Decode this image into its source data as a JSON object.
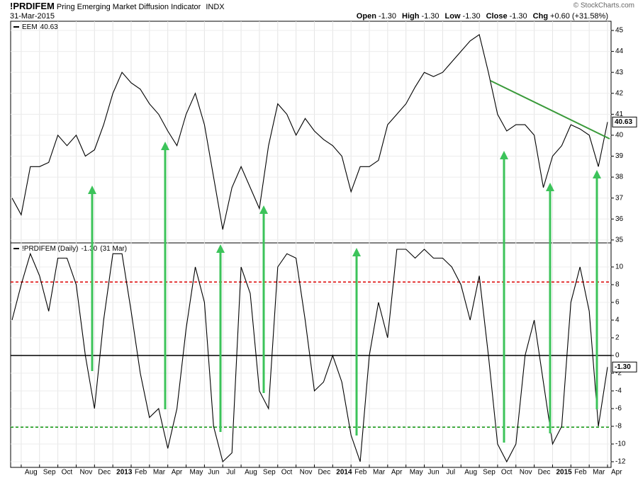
{
  "header": {
    "title": "!PRDIFEM",
    "subtitle": "Pring Emerging Market Diffusion Indicator",
    "exchange": "INDX",
    "date": "31-Mar-2015",
    "quote": [
      {
        "label": "Open",
        "value": "-1.30"
      },
      {
        "label": "High",
        "value": "-1.30"
      },
      {
        "label": "Low",
        "value": "-1.30"
      },
      {
        "label": "Close",
        "value": "-1.30"
      },
      {
        "label": "Chg",
        "value": "+0.60 (+31.58%)"
      }
    ],
    "copyright": "© StockCharts.com"
  },
  "chart_data": [
    {
      "type": "line",
      "ylim": [
        34.86,
        45.44
      ],
      "yticks": [
        35,
        36,
        37,
        38,
        39,
        40,
        41,
        42,
        43,
        44,
        45
      ],
      "grid": true,
      "series": [
        {
          "name": "EEM",
          "color": "#000000",
          "values": [
            37.0,
            36.2,
            38.5,
            38.5,
            38.7,
            40.0,
            39.5,
            40.0,
            39.0,
            39.3,
            40.5,
            42.0,
            43.0,
            42.5,
            42.2,
            41.5,
            41.0,
            40.2,
            39.5,
            41.0,
            42.0,
            40.5,
            38.0,
            35.5,
            37.5,
            38.5,
            37.5,
            36.5,
            39.5,
            41.5,
            41.0,
            40.0,
            40.8,
            40.2,
            39.8,
            39.5,
            39.0,
            37.3,
            38.5,
            38.5,
            38.8,
            40.5,
            41.0,
            41.5,
            42.3,
            43.0,
            42.8,
            43.0,
            43.5,
            44.0,
            44.5,
            44.8,
            43.0,
            41.0,
            40.2,
            40.5,
            40.5,
            40.0,
            37.5,
            39.0,
            39.5,
            40.5,
            40.3,
            40.0,
            38.5,
            40.63
          ]
        }
      ]
    },
    {
      "type": "line",
      "ylim": [
        -12.64,
        12.72
      ],
      "yticks": [
        -12,
        -10,
        -8,
        -6,
        -4,
        -2,
        0,
        2,
        4,
        6,
        8,
        10
      ],
      "grid": true,
      "categories": [
        null,
        "Aug",
        null,
        "Sep",
        null,
        "Oct",
        null,
        "Nov",
        null,
        "Dec",
        null,
        "2013",
        null,
        "Feb",
        null,
        "Mar",
        null,
        "Apr",
        null,
        "May",
        null,
        "Jun",
        null,
        "Jul",
        null,
        "Aug",
        null,
        "Sep",
        null,
        "Oct",
        null,
        "Nov",
        null,
        "Dec",
        null,
        "2014",
        null,
        "Feb",
        null,
        "Mar",
        null,
        "Apr",
        null,
        "May",
        null,
        "Jun",
        null,
        "Jul",
        null,
        "Aug",
        null,
        "Sep",
        null,
        "Oct",
        null,
        "Nov",
        null,
        "Dec",
        null,
        "2015",
        null,
        "Feb",
        null,
        "Mar",
        null,
        "Apr"
      ],
      "series": [
        {
          "name": "!PRDIFEM (Daily)",
          "color": "#000000",
          "values": [
            4,
            8,
            11.5,
            9,
            5,
            11,
            11,
            8,
            0,
            -6,
            4,
            11.5,
            11.5,
            5,
            -2,
            -7,
            -6,
            -10.5,
            -6,
            3,
            10,
            6,
            -8,
            -12,
            -11,
            10,
            7,
            -4,
            -6,
            10,
            11.5,
            11,
            4,
            -4,
            -3,
            0,
            -3,
            -9,
            -12,
            0,
            6,
            2,
            12,
            12,
            11,
            12,
            11,
            11,
            10,
            8,
            4,
            9,
            0,
            -10,
            -12,
            -10,
            0,
            4,
            -3,
            -10,
            -8,
            6,
            10,
            5,
            -8,
            -1.3
          ]
        }
      ],
      "last_value_label": "-1.30",
      "last_date": "31 Mar",
      "hlines": [
        {
          "value": 8.3,
          "color": "#dd0000",
          "dashed": true
        },
        {
          "value": 0,
          "color": "#000000",
          "dashed": false
        },
        {
          "value": -8.1,
          "color": "#119911",
          "dashed": true
        }
      ]
    }
  ]
}
